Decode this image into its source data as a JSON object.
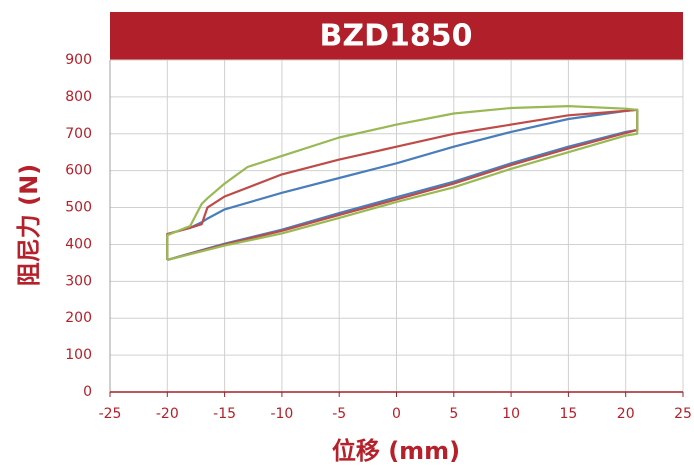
{
  "chart_data": {
    "type": "line",
    "title": "BZD1850",
    "xlabel": "位移 (mm)",
    "ylabel": "阻尼力 (N)",
    "xlim": [
      -25,
      25
    ],
    "xticks": [
      -25,
      -20,
      -15,
      -10,
      -5,
      0,
      5,
      10,
      15,
      20,
      25
    ],
    "ylim": [
      0,
      900
    ],
    "yticks": [
      0,
      100,
      200,
      300,
      400,
      500,
      600,
      700,
      800,
      900
    ],
    "grid": true,
    "series": [
      {
        "color": "#4a7ebb",
        "x": [
          -20,
          -15,
          -10,
          -5,
          0,
          5,
          10,
          15,
          20,
          21,
          21,
          20,
          15,
          10,
          5,
          0,
          -5,
          -10,
          -15,
          -16.5,
          -17,
          -18,
          -20,
          -20
        ],
        "values": [
          358,
          402,
          440,
          485,
          528,
          570,
          620,
          665,
          705,
          710,
          765,
          762,
          740,
          705,
          665,
          620,
          580,
          540,
          495,
          470,
          460,
          445,
          428,
          358
        ]
      },
      {
        "color": "#be4b48",
        "x": [
          -20,
          -15,
          -10,
          -5,
          0,
          5,
          10,
          15,
          20,
          21,
          21,
          20,
          15,
          10,
          5,
          0,
          -5,
          -10,
          -15,
          -16.5,
          -17,
          -18,
          -20,
          -20
        ],
        "values": [
          358,
          400,
          437,
          480,
          522,
          565,
          615,
          660,
          702,
          710,
          765,
          762,
          750,
          725,
          700,
          665,
          630,
          590,
          530,
          500,
          455,
          445,
          428,
          358
        ]
      },
      {
        "color": "#98b954",
        "x": [
          -20,
          -15,
          -10,
          -5,
          0,
          5,
          10,
          15,
          20,
          21,
          21,
          20,
          15,
          10,
          5,
          0,
          -5,
          -10,
          -13,
          -15,
          -16.5,
          -17,
          -18,
          -20,
          -20
        ],
        "values": [
          358,
          397,
          430,
          472,
          515,
          555,
          605,
          650,
          695,
          700,
          765,
          768,
          775,
          770,
          755,
          725,
          690,
          640,
          610,
          565,
          525,
          510,
          450,
          425,
          358
        ]
      }
    ]
  }
}
